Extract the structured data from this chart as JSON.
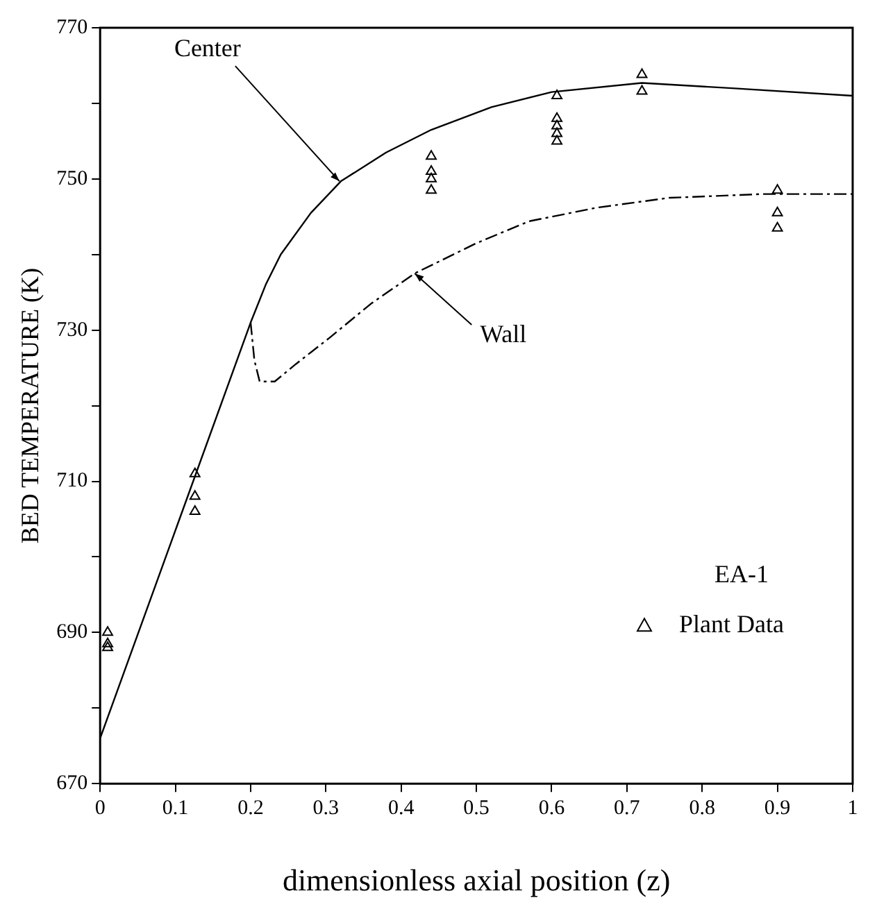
{
  "chart_data": {
    "type": "line",
    "xlabel": "dimensionless axial position (z)",
    "ylabel": "BED TEMPERATURE (K)",
    "legend_title": "EA-1",
    "xlim": [
      0,
      1
    ],
    "xticks": [
      0,
      0.1,
      0.2,
      0.3,
      0.4,
      0.5,
      0.6,
      0.7,
      0.8,
      0.9,
      1
    ],
    "ylim": [
      670,
      770
    ],
    "yticks": [
      670,
      {
        "value": 680,
        "label": null
      },
      690,
      {
        "value": 700,
        "label": null
      },
      710,
      {
        "value": 720,
        "label": null
      },
      730,
      {
        "value": 740,
        "label": null
      },
      750,
      {
        "value": 760,
        "label": null
      },
      770
    ],
    "series": [
      {
        "color": "#000000",
        "line_style": "solid",
        "marker": "none",
        "x": [
          0,
          0.2,
          0.22,
          0.24,
          0.28,
          0.32,
          0.38,
          0.44,
          0.52,
          0.6,
          0.72,
          0.84,
          1
        ],
        "values": [
          676,
          731,
          736,
          740,
          745.5,
          749.7,
          753.5,
          756.5,
          759.5,
          761.5,
          762.7,
          762,
          761
        ]
      },
      {
        "color": "#000000",
        "line_style": "dashed",
        "marker": "none",
        "x": [
          0.2,
          0.205,
          0.212,
          0.232,
          0.26,
          0.305,
          0.36,
          0.418,
          0.5,
          0.57,
          0.66,
          0.756,
          0.88,
          1
        ],
        "values": [
          731,
          726,
          723.2,
          723.2,
          725.5,
          729,
          733.5,
          737.5,
          741.5,
          744.4,
          746.2,
          747.5,
          748,
          748
        ]
      },
      {
        "type": "scatter",
        "name": "Plant Data",
        "color": "#000000",
        "marker": "triangle",
        "x": [
          0.01,
          0.01,
          0.01,
          0.126,
          0.126,
          0.126,
          0.44,
          0.44,
          0.44,
          0.44,
          0.607,
          0.607,
          0.607,
          0.607,
          0.607,
          0.72,
          0.72,
          0.9,
          0.9,
          0.9
        ],
        "values": [
          690,
          688.5,
          688,
          711,
          708,
          706,
          753,
          751,
          750,
          748.5,
          761,
          758,
          757,
          756,
          755,
          763.8,
          761.6,
          748.5,
          745.5,
          743.5
        ]
      }
    ],
    "annotations": [
      {
        "text": "Center",
        "x": 0.318,
        "y": 749.7
      },
      {
        "text": "Wall",
        "x": 0.418,
        "y": 737.5
      }
    ],
    "legend": "bottom right",
    "grid": false
  }
}
